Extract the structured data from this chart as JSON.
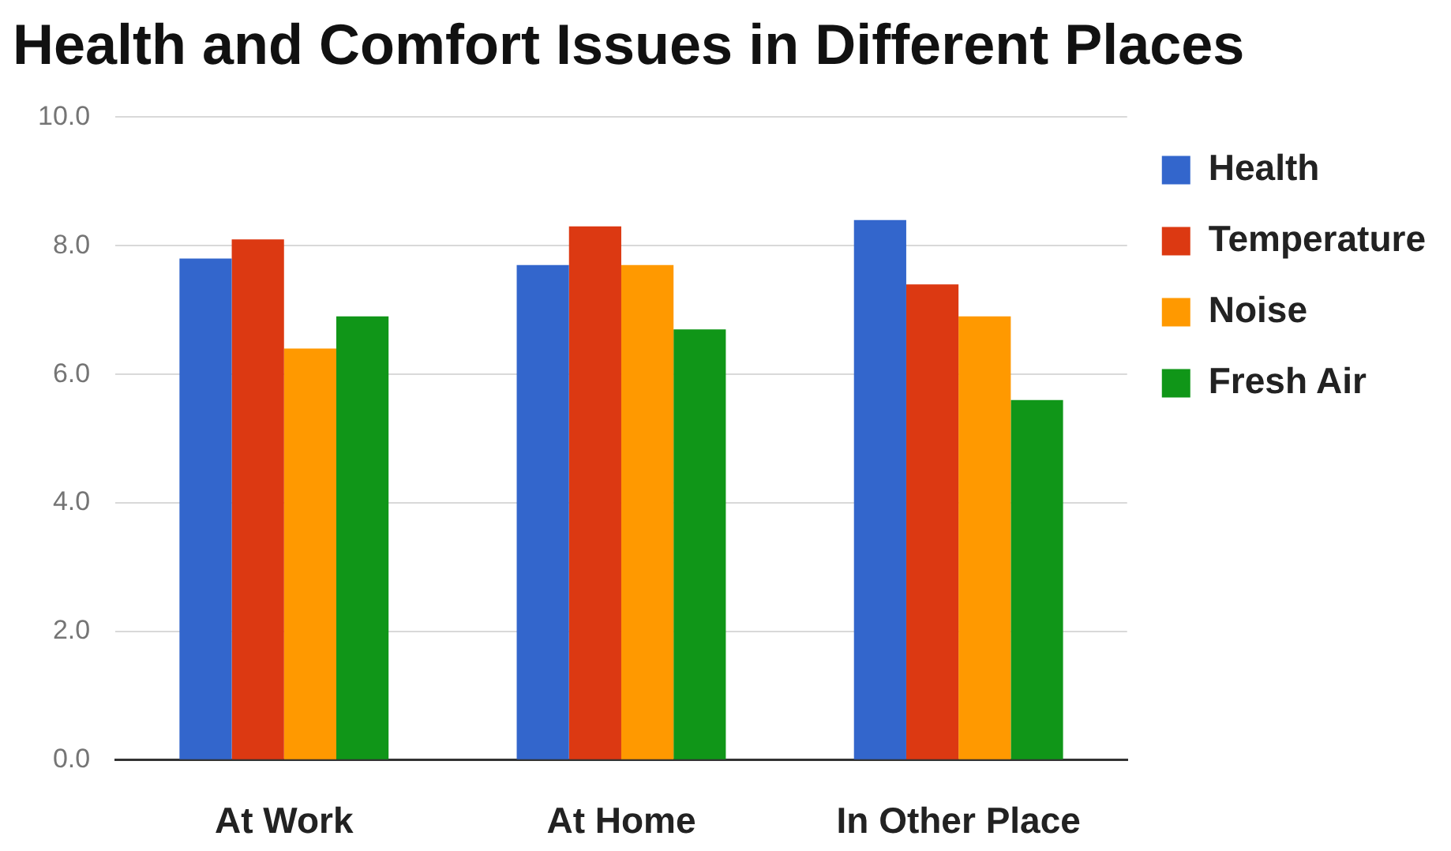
{
  "chart_data": {
    "type": "bar",
    "title": "Health and Comfort Issues in Different Places",
    "categories": [
      "At Work",
      "At Home",
      "In Other Place"
    ],
    "series": [
      {
        "name": "Health",
        "color": "#3366cc",
        "values": [
          7.8,
          7.7,
          8.4
        ]
      },
      {
        "name": "Temperature",
        "color": "#dc3912",
        "values": [
          8.1,
          8.3,
          7.4
        ]
      },
      {
        "name": "Noise",
        "color": "#ff9900",
        "values": [
          6.4,
          7.7,
          6.9
        ]
      },
      {
        "name": "Fresh Air",
        "color": "#109618",
        "values": [
          6.9,
          6.7,
          5.6
        ]
      }
    ],
    "ylim": [
      0,
      10
    ],
    "yticks": [
      {
        "value": 0,
        "label": "0.0"
      },
      {
        "value": 2,
        "label": "2.0"
      },
      {
        "value": 4,
        "label": "4.0"
      },
      {
        "value": 6,
        "label": "6.0"
      },
      {
        "value": 8,
        "label": "8.0"
      },
      {
        "value": 10,
        "label": "10.0"
      }
    ],
    "grid": "y",
    "legend": "top right"
  }
}
